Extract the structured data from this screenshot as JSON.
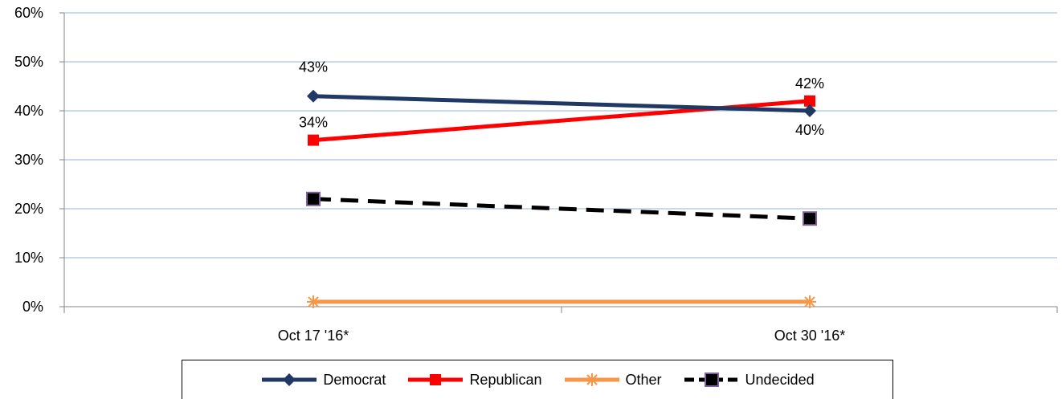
{
  "chart_data": {
    "type": "line",
    "x": [
      "Oct 17 '16*",
      "Oct 30 '16*"
    ],
    "ylim": [
      0,
      60
    ],
    "yticks": [
      "0%",
      "10%",
      "20%",
      "30%",
      "40%",
      "50%",
      "60%"
    ],
    "grid": true,
    "legend_position": "bottom",
    "series": [
      {
        "name": "Democrat",
        "values": [
          43,
          40
        ],
        "labels": [
          "43%",
          "40%"
        ],
        "color": "#1f3864",
        "marker": "diamond",
        "dash": "solid"
      },
      {
        "name": "Republican",
        "values": [
          34,
          42
        ],
        "labels": [
          "34%",
          "42%"
        ],
        "color": "#ff0000",
        "marker": "square",
        "dash": "solid"
      },
      {
        "name": "Other",
        "values": [
          1,
          1
        ],
        "labels": [],
        "color": "#f79646",
        "marker": "star",
        "dash": "solid"
      },
      {
        "name": "Undecided",
        "values": [
          22,
          18
        ],
        "labels": [],
        "color": "#000000",
        "marker": "square-purple",
        "dash": "dashed"
      }
    ]
  }
}
